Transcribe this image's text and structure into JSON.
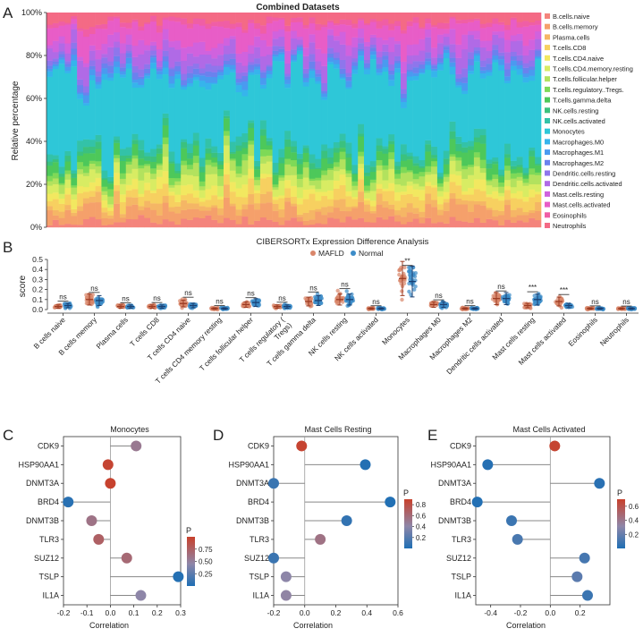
{
  "panel_labels": [
    "A",
    "B",
    "C",
    "D",
    "E"
  ],
  "chart_data": [
    {
      "panel": "A",
      "type": "bar",
      "stacked": true,
      "title": "Combined Datasets",
      "xlabel": "",
      "ylabel": "Relative percentage",
      "ylim": [
        0,
        100
      ],
      "yticks": [
        "0%",
        "20%",
        "40%",
        "60%",
        "80%",
        "100%"
      ],
      "n_samples": 81,
      "legend_position": "right",
      "series": [
        {
          "name": "B.cells.naive",
          "color": "#F4847C",
          "mean_percent": 3
        },
        {
          "name": "B.cells.memory",
          "color": "#F5A06B",
          "mean_percent": 5
        },
        {
          "name": "Plasma.cells",
          "color": "#F5B665",
          "mean_percent": 3
        },
        {
          "name": "T.cells.CD8",
          "color": "#F7D060",
          "mean_percent": 4
        },
        {
          "name": "T.cells.CD4.naive",
          "color": "#F2E860",
          "mean_percent": 3
        },
        {
          "name": "T.cells.CD4.memory.resting",
          "color": "#D8EC63",
          "mean_percent": 4
        },
        {
          "name": "T.cells.follicular.helper",
          "color": "#B2E25E",
          "mean_percent": 3
        },
        {
          "name": "T.cells.regulatory..Tregs.",
          "color": "#7ED957",
          "mean_percent": 2
        },
        {
          "name": "T.cells.gamma.delta",
          "color": "#4DC85A",
          "mean_percent": 4
        },
        {
          "name": "NK.cells.resting",
          "color": "#3BC17E",
          "mean_percent": 2
        },
        {
          "name": "NK.cells.activated",
          "color": "#33C2A8",
          "mean_percent": 3
        },
        {
          "name": "Monocytes",
          "color": "#2EC7D8",
          "mean_percent": 34
        },
        {
          "name": "Macrophages.M0",
          "color": "#36B4EC",
          "mean_percent": 2
        },
        {
          "name": "Macrophages.M1",
          "color": "#4A9AF0",
          "mean_percent": 2
        },
        {
          "name": "Macrophages.M2",
          "color": "#6A82EE",
          "mean_percent": 2
        },
        {
          "name": "Dendritic.cells.resting",
          "color": "#8E76EC",
          "mean_percent": 2
        },
        {
          "name": "Dendritic.cells.activated",
          "color": "#B06AE6",
          "mean_percent": 5
        },
        {
          "name": "Mast.cells.resting",
          "color": "#D062DE",
          "mean_percent": 4
        },
        {
          "name": "Mast.cells.activated",
          "color": "#E85DC7",
          "mean_percent": 7
        },
        {
          "name": "Eosinophils",
          "color": "#F05EA5",
          "mean_percent": 2
        },
        {
          "name": "Neutrophils",
          "color": "#F46A85",
          "mean_percent": 4
        }
      ]
    },
    {
      "panel": "B",
      "type": "scatter",
      "title": "CIBERSORTx Expression Difference Analysis",
      "xlabel": "",
      "ylabel": "score",
      "ylim": [
        0,
        0.5
      ],
      "yticks": [
        "0.0",
        "0.1",
        "0.2",
        "0.3",
        "0.4",
        "0.5"
      ],
      "legend_position": "top",
      "groups": [
        {
          "name": "MAFLD",
          "color": "#D9866A"
        },
        {
          "name": "Normal",
          "color": "#3C8CC8"
        }
      ],
      "categories": [
        "B cells naive",
        "B cells memory",
        "Plasma cells",
        "T cells CD8",
        "T cells CD4 naive",
        "T cells CD4 memory resting",
        "T cells follicular helper",
        "T cells regulatory (\nTregs)",
        "T cells gamma delta",
        "NK cells resting",
        "NK cells activated",
        "Monocytes",
        "Macrophages M0",
        "Macrophages M2",
        "Dendritic cells activated",
        "Mast cells resting",
        "Mast cells activated",
        "Eosinophils",
        "Neutrophils"
      ],
      "mafld_mean": [
        0.03,
        0.1,
        0.03,
        0.03,
        0.06,
        0.01,
        0.05,
        0.03,
        0.08,
        0.1,
        0.01,
        0.31,
        0.05,
        0.01,
        0.11,
        0.04,
        0.08,
        0.01,
        0.01
      ],
      "normal_mean": [
        0.04,
        0.09,
        0.03,
        0.03,
        0.04,
        0.01,
        0.07,
        0.03,
        0.09,
        0.1,
        0.01,
        0.28,
        0.05,
        0.01,
        0.11,
        0.1,
        0.04,
        0.01,
        0.01
      ],
      "significance": [
        "ns",
        "ns",
        "ns",
        "ns",
        "ns",
        "ns",
        "ns",
        "ns",
        "ns",
        "ns",
        "ns",
        "**",
        "ns",
        "ns",
        "ns",
        "***",
        "***",
        "ns",
        "ns"
      ]
    },
    {
      "panel": "C",
      "type": "scatter",
      "title": "Monocytes",
      "xlabel": "Correlation",
      "ylabel": "",
      "xlim": [
        -0.2,
        0.3
      ],
      "xticks": [
        "-0.2",
        "-0.1",
        "0.0",
        "0.1",
        "0.2",
        "0.3"
      ],
      "genes": [
        "CDK9",
        "HSP90AA1",
        "DNMT3A",
        "BRD4",
        "DNMT3B",
        "TLR3",
        "SUZ12",
        "TSLP",
        "IL1A"
      ],
      "correlation": [
        0.11,
        -0.01,
        0.0,
        -0.18,
        -0.08,
        -0.05,
        0.07,
        0.29,
        0.13
      ],
      "p": [
        0.55,
        0.97,
        0.99,
        0.04,
        0.6,
        0.75,
        0.68,
        0.02,
        0.45
      ],
      "p_title": "P",
      "p_range": [
        0.0,
        1.0
      ],
      "p_ticks": [
        "0.75",
        "0.50",
        "0.25"
      ]
    },
    {
      "panel": "D",
      "type": "scatter",
      "title": "Mast Cells Resting",
      "xlabel": "Correlation",
      "ylabel": "",
      "xlim": [
        -0.2,
        0.6
      ],
      "xticks": [
        "-0.2",
        "0.0",
        "0.2",
        "0.4",
        "0.6"
      ],
      "genes": [
        "CDK9",
        "HSP90AA1",
        "DNMT3A",
        "BRD4",
        "DNMT3B",
        "TLR3",
        "SUZ12",
        "TSLP",
        "IL1A"
      ],
      "correlation": [
        -0.02,
        0.39,
        -0.2,
        0.55,
        0.27,
        0.1,
        -0.2,
        -0.12,
        -0.12
      ],
      "p": [
        0.88,
        0.02,
        0.1,
        0.01,
        0.07,
        0.55,
        0.1,
        0.4,
        0.42
      ],
      "p_title": "P",
      "p_range": [
        0.0,
        0.9
      ],
      "p_ticks": [
        "0.8",
        "0.6",
        "0.4",
        "0.2"
      ]
    },
    {
      "panel": "E",
      "type": "scatter",
      "title": "Mast Cells Activated",
      "xlabel": "Correlation",
      "ylabel": "",
      "xlim": [
        -0.5,
        0.4
      ],
      "xticks": [
        "-0.4",
        "-0.2",
        "0.0",
        "0.2"
      ],
      "genes": [
        "CDK9",
        "HSP90AA1",
        "DNMT3A",
        "BRD4",
        "DNMT3B",
        "TLR3",
        "SUZ12",
        "TSLP",
        "IL1A"
      ],
      "correlation": [
        0.03,
        -0.42,
        0.33,
        -0.49,
        -0.26,
        -0.22,
        0.23,
        0.18,
        0.25
      ],
      "p": [
        0.68,
        0.02,
        0.03,
        0.01,
        0.08,
        0.12,
        0.11,
        0.17,
        0.08
      ],
      "p_title": "P",
      "p_range": [
        0.0,
        0.7
      ],
      "p_ticks": [
        "0.6",
        "0.4",
        "0.2"
      ]
    }
  ]
}
